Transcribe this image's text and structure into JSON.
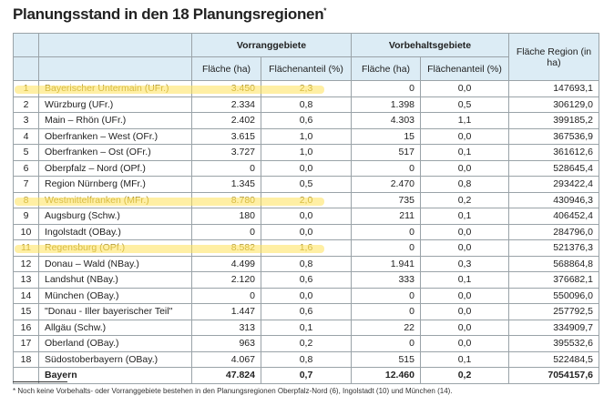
{
  "title": "Planungsstand in den 18 Planungsregionen",
  "title_mark": "*",
  "headers": {
    "vorrang": "Vorranggebiete",
    "vorbehalt": "Vorbehaltsgebiete",
    "flaeche_region": "Fläche Region (in ha)",
    "flaeche": "Fläche (ha)",
    "anteil": "Flächenanteil (%)"
  },
  "rows": [
    [
      "1",
      "Bayerischer Untermain (UFr.)",
      "3.450",
      "2,3",
      "0",
      "0,0",
      "147693,1"
    ],
    [
      "2",
      "Würzburg (UFr.)",
      "2.334",
      "0,8",
      "1.398",
      "0,5",
      "306129,0"
    ],
    [
      "3",
      "Main – Rhön (UFr.)",
      "2.402",
      "0,6",
      "4.303",
      "1,1",
      "399185,2"
    ],
    [
      "4",
      "Oberfranken – West (OFr.)",
      "3.615",
      "1,0",
      "15",
      "0,0",
      "367536,9"
    ],
    [
      "5",
      "Oberfranken – Ost (OFr.)",
      "3.727",
      "1,0",
      "517",
      "0,1",
      "361612,6"
    ],
    [
      "6",
      "Oberpfalz – Nord (OPf.)",
      "0",
      "0,0",
      "0",
      "0,0",
      "528645,4"
    ],
    [
      "7",
      "Region Nürnberg (MFr.)",
      "1.345",
      "0,5",
      "2.470",
      "0,8",
      "293422,4"
    ],
    [
      "8",
      "Westmittelfranken (MFr.)",
      "8.780",
      "2,0",
      "735",
      "0,2",
      "430946,3"
    ],
    [
      "9",
      "Augsburg (Schw.)",
      "180",
      "0,0",
      "211",
      "0,1",
      "406452,4"
    ],
    [
      "10",
      "Ingolstadt (OBay.)",
      "0",
      "0,0",
      "0",
      "0,0",
      "284796,0"
    ],
    [
      "11",
      "Regensburg (OPf.)",
      "8.582",
      "1,6",
      "0",
      "0,0",
      "521376,3"
    ],
    [
      "12",
      "Donau – Wald (NBay.)",
      "4.499",
      "0,8",
      "1.941",
      "0,3",
      "568864,8"
    ],
    [
      "13",
      "Landshut (NBay.)",
      "2.120",
      "0,6",
      "333",
      "0,1",
      "376682,1"
    ],
    [
      "14",
      "München (OBay.)",
      "0",
      "0,0",
      "0",
      "0,0",
      "550096,0"
    ],
    [
      "15",
      "\"Donau - Iller bayerischer Teil\"",
      "1.447",
      "0,6",
      "0",
      "0,0",
      "257792,5"
    ],
    [
      "16",
      "Allgäu (Schw.)",
      "313",
      "0,1",
      "22",
      "0,0",
      "334909,7"
    ],
    [
      "17",
      "Oberland (OBay.)",
      "963",
      "0,2",
      "0",
      "0,0",
      "395532,6"
    ],
    [
      "18",
      "Südostoberbayern (OBay.)",
      "4.067",
      "0,8",
      "515",
      "0,1",
      "522484,5"
    ]
  ],
  "highlighted_rows": [
    1,
    8,
    11
  ],
  "total": [
    "",
    "Bayern",
    "47.824",
    "0,7",
    "12.460",
    "0,2",
    "7054157,6"
  ],
  "footnote": "*  Noch keine Vorbehalts- oder Vorranggebiete bestehen in den Planungsregionen Oberpfalz-Nord (6), Ingolstadt (10) und München (14)."
}
